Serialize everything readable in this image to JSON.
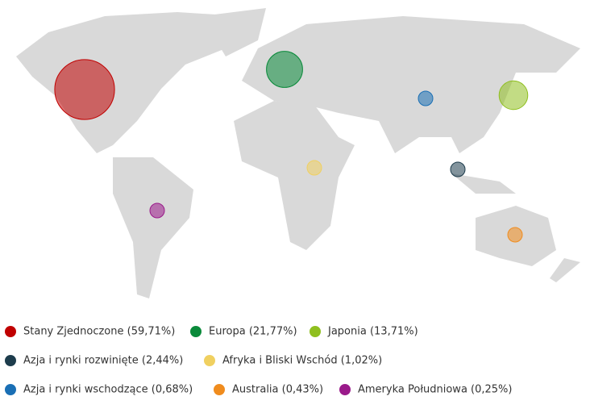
{
  "regions": [
    {
      "label": "Stany Zjednoczone (59,71%)",
      "value": 59.71,
      "color": "#c00000"
    },
    {
      "label": "Europa (21,77%)",
      "value": 21.77,
      "color": "#0a8a3a"
    },
    {
      "label": "Japonia (13,71%)",
      "value": 13.71,
      "color": "#8fbf1f"
    },
    {
      "label": "Azja i rynki rozwinięte (2,44%)",
      "value": 2.44,
      "color": "#1d3c4c"
    },
    {
      "label": "Afryka i Bliski Wschód (1,02%)",
      "value": 1.02,
      "color": "#f0d060"
    },
    {
      "label": "Azja i rynki wschodzące (0,68%)",
      "value": 0.68,
      "color": "#1a6fb5"
    },
    {
      "label": "Australia (0,43%)",
      "value": 0.43,
      "color": "#f08c1e"
    },
    {
      "label": "Ameryka Południowa (0,25%)",
      "value": 0.25,
      "color": "#9a1a8a"
    }
  ]
}
